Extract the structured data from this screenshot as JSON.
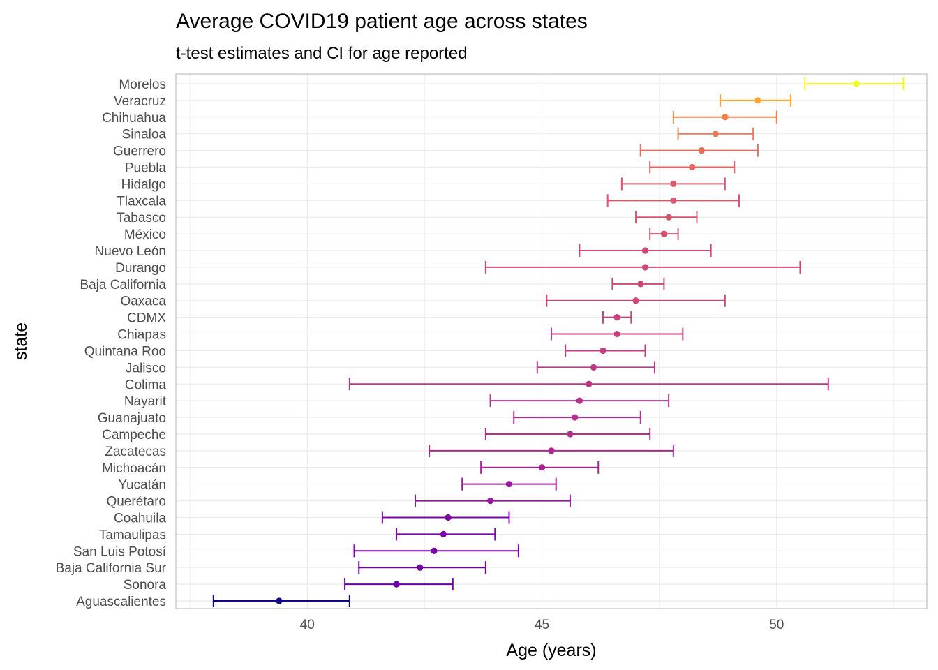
{
  "chart_data": {
    "type": "scatter",
    "subtype": "point-range with error bars (horizontal)",
    "title": "Average COVID19 patient age across states",
    "subtitle": "t-test estimates and CI for age reported",
    "xlabel": "Age (years)",
    "ylabel": "state",
    "xlim": [
      37.2,
      53.2
    ],
    "x_ticks": [
      40,
      45,
      50
    ],
    "x_tick_labels": [
      "40",
      "45",
      "50"
    ],
    "grid": true,
    "legend": "none",
    "color_scale": "plasma (by estimate, low = dark blue, high = yellow)",
    "rows": [
      {
        "state": "Aguascalientes",
        "estimate": 39.4,
        "low": 38.0,
        "high": 40.9,
        "color": "#0d0887"
      },
      {
        "state": "Sonora",
        "estimate": 41.9,
        "low": 40.8,
        "high": 43.1,
        "color": "#6a00a8"
      },
      {
        "state": "Baja California Sur",
        "estimate": 42.4,
        "low": 41.1,
        "high": 43.8,
        "color": "#7201a8"
      },
      {
        "state": "San Luis Potosí",
        "estimate": 42.7,
        "low": 41.0,
        "high": 44.5,
        "color": "#7a02a8"
      },
      {
        "state": "Tamaulipas",
        "estimate": 42.9,
        "low": 41.9,
        "high": 44.0,
        "color": "#7e03a8"
      },
      {
        "state": "Coahuila",
        "estimate": 43.0,
        "low": 41.6,
        "high": 44.3,
        "color": "#8104a7"
      },
      {
        "state": "Querétaro",
        "estimate": 43.9,
        "low": 42.3,
        "high": 45.6,
        "color": "#9512a1"
      },
      {
        "state": "Yucatán",
        "estimate": 44.3,
        "low": 43.3,
        "high": 45.3,
        "color": "#9c179e"
      },
      {
        "state": "Michoacán",
        "estimate": 45.0,
        "low": 43.7,
        "high": 46.2,
        "color": "#a82296"
      },
      {
        "state": "Zacatecas",
        "estimate": 45.2,
        "low": 42.6,
        "high": 47.8,
        "color": "#ac2694"
      },
      {
        "state": "Campeche",
        "estimate": 45.6,
        "low": 43.8,
        "high": 47.3,
        "color": "#b52f8c"
      },
      {
        "state": "Guanajuato",
        "estimate": 45.7,
        "low": 44.4,
        "high": 47.1,
        "color": "#b6308b"
      },
      {
        "state": "Nayarit",
        "estimate": 45.8,
        "low": 43.9,
        "high": 47.7,
        "color": "#b83289"
      },
      {
        "state": "Colima",
        "estimate": 46.0,
        "low": 40.9,
        "high": 51.1,
        "color": "#bd3786"
      },
      {
        "state": "Jalisco",
        "estimate": 46.1,
        "low": 44.9,
        "high": 47.4,
        "color": "#be3885"
      },
      {
        "state": "Quintana Roo",
        "estimate": 46.3,
        "low": 45.5,
        "high": 47.2,
        "color": "#c23d80"
      },
      {
        "state": "Chiapas",
        "estimate": 46.6,
        "low": 45.2,
        "high": 48.0,
        "color": "#c6417d"
      },
      {
        "state": "CDMX",
        "estimate": 46.6,
        "low": 46.3,
        "high": 46.9,
        "color": "#c6417d"
      },
      {
        "state": "Oaxaca",
        "estimate": 47.0,
        "low": 45.1,
        "high": 48.9,
        "color": "#cb4679"
      },
      {
        "state": "Baja California",
        "estimate": 47.1,
        "low": 46.5,
        "high": 47.6,
        "color": "#cc4778"
      },
      {
        "state": "Durango",
        "estimate": 47.2,
        "low": 43.8,
        "high": 50.5,
        "color": "#ce4a76"
      },
      {
        "state": "Nuevo León",
        "estimate": 47.2,
        "low": 45.8,
        "high": 48.6,
        "color": "#ce4a76"
      },
      {
        "state": "México",
        "estimate": 47.6,
        "low": 47.3,
        "high": 47.9,
        "color": "#d45270"
      },
      {
        "state": "Tabasco",
        "estimate": 47.7,
        "low": 47.0,
        "high": 48.3,
        "color": "#d6556d"
      },
      {
        "state": "Tlaxcala",
        "estimate": 47.8,
        "low": 46.4,
        "high": 49.2,
        "color": "#d8576b"
      },
      {
        "state": "Hidalgo",
        "estimate": 47.8,
        "low": 46.7,
        "high": 48.9,
        "color": "#d8576b"
      },
      {
        "state": "Puebla",
        "estimate": 48.2,
        "low": 47.3,
        "high": 49.1,
        "color": "#e26561"
      },
      {
        "state": "Guerrero",
        "estimate": 48.4,
        "low": 47.1,
        "high": 49.6,
        "color": "#e76e5b"
      },
      {
        "state": "Sinaloa",
        "estimate": 48.7,
        "low": 47.9,
        "high": 49.5,
        "color": "#ed7953"
      },
      {
        "state": "Chihuahua",
        "estimate": 48.9,
        "low": 47.8,
        "high": 50.0,
        "color": "#f0804e"
      },
      {
        "state": "Veracruz",
        "estimate": 49.6,
        "low": 48.8,
        "high": 50.3,
        "color": "#fca636"
      },
      {
        "state": "Morelos",
        "estimate": 51.7,
        "low": 50.6,
        "high": 52.7,
        "color": "#f0f921"
      }
    ]
  }
}
